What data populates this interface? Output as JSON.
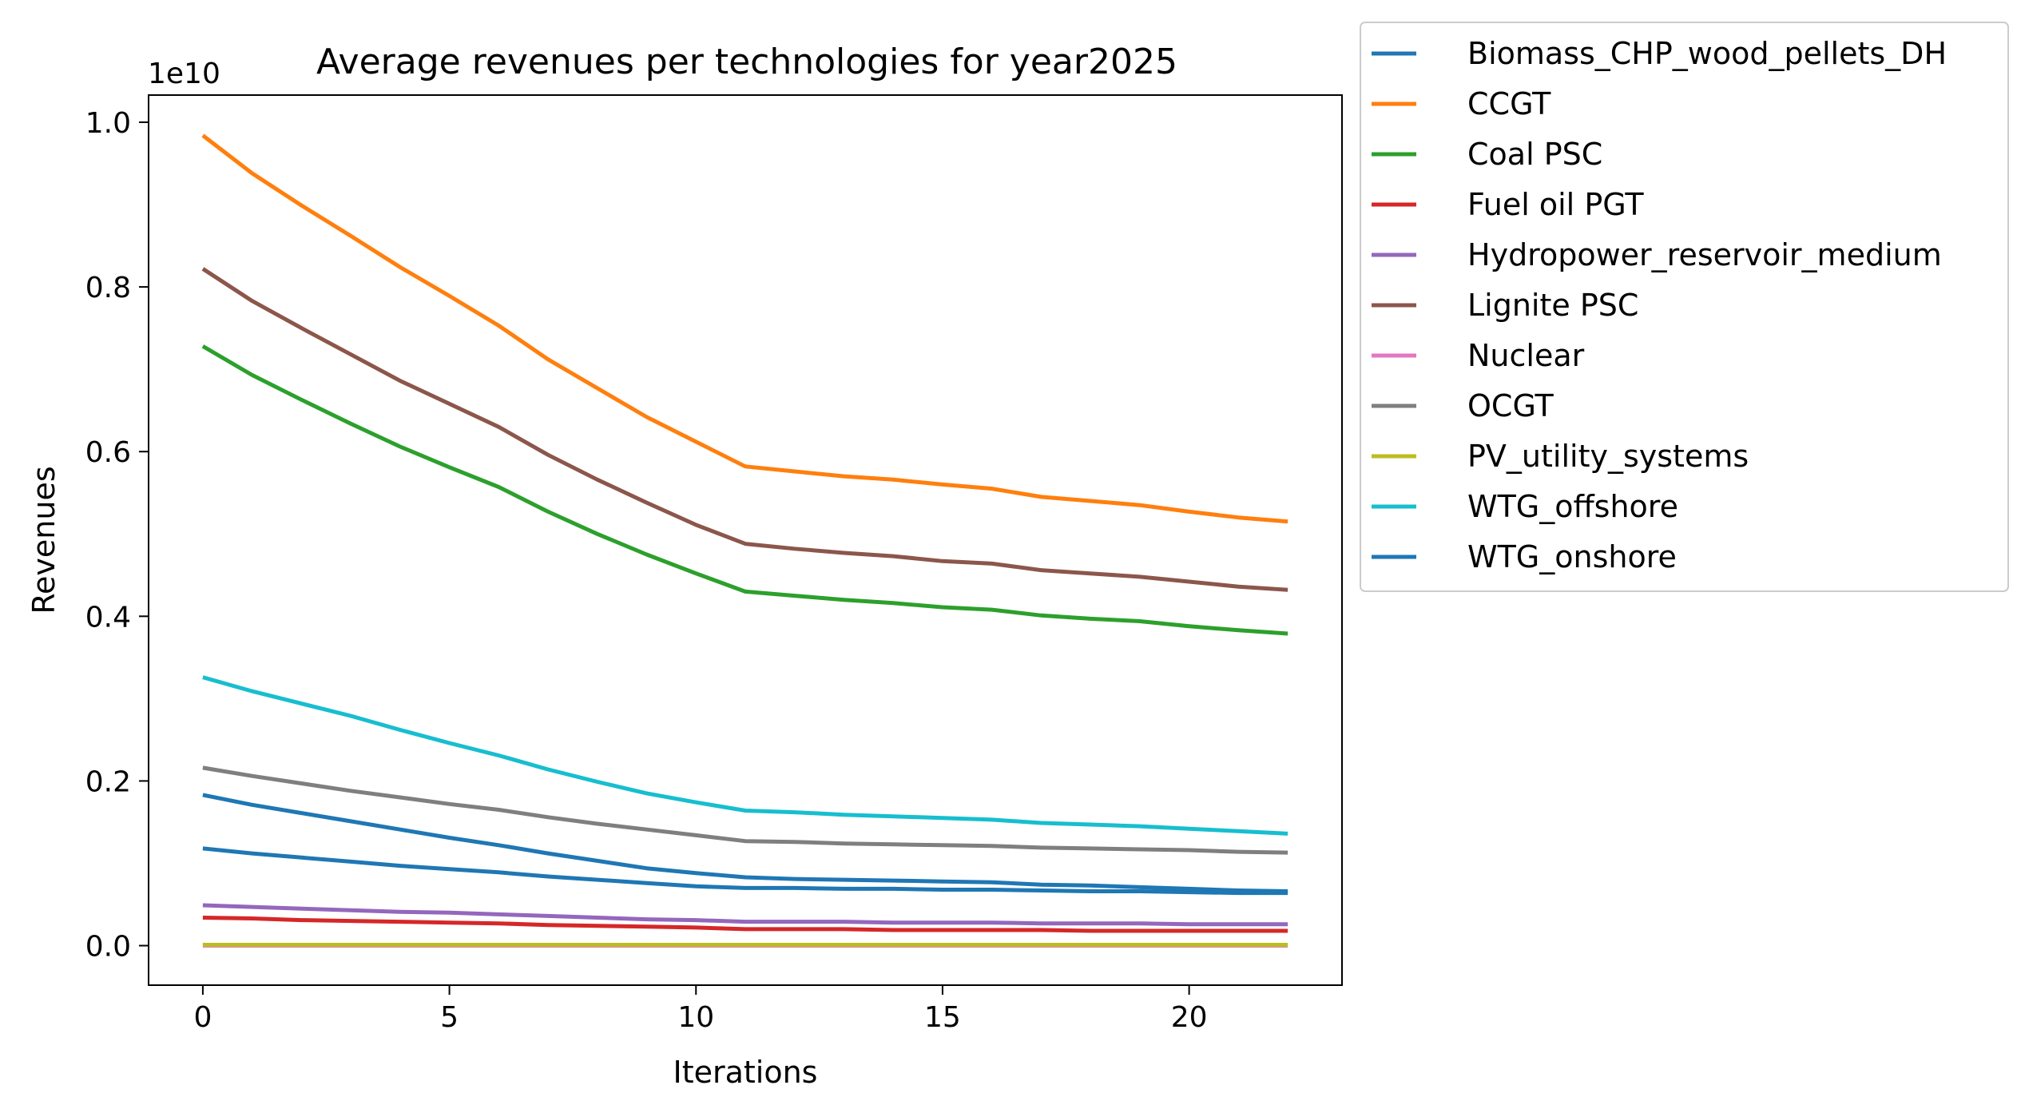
{
  "chart_data": {
    "type": "line",
    "title": "Average revenues per technologies for year2025",
    "xlabel": "Iterations",
    "ylabel": "Revenues",
    "y_offset_label": "1e10",
    "xlim": [
      -1.1,
      23.1
    ],
    "ylim": [
      -0.048,
      1.033
    ],
    "x_ticks": [
      0,
      5,
      10,
      15,
      20
    ],
    "y_ticks": [
      0.0,
      0.2,
      0.4,
      0.6,
      0.8,
      1.0
    ],
    "x_tick_labels": [
      "0",
      "5",
      "10",
      "15",
      "20"
    ],
    "y_tick_labels": [
      "0.0",
      "0.2",
      "0.4",
      "0.6",
      "0.8",
      "1.0"
    ],
    "grid": false,
    "legend_position": "outside-right-top",
    "x": [
      0,
      1,
      2,
      3,
      4,
      5,
      6,
      7,
      8,
      9,
      10,
      11,
      12,
      13,
      14,
      15,
      16,
      17,
      18,
      19,
      20,
      21,
      22
    ],
    "series": [
      {
        "name": "Biomass_CHP_wood_pellets_DH",
        "color": "#1f77b4",
        "values": [
          0.118,
          0.112,
          0.107,
          0.102,
          0.097,
          0.093,
          0.089,
          0.084,
          0.08,
          0.076,
          0.072,
          0.07,
          0.07,
          0.069,
          0.069,
          0.068,
          0.068,
          0.067,
          0.066,
          0.066,
          0.065,
          0.064,
          0.064
        ]
      },
      {
        "name": "CCGT",
        "color": "#ff7f0e",
        "values": [
          0.984,
          0.938,
          0.899,
          0.862,
          0.824,
          0.789,
          0.753,
          0.712,
          0.677,
          0.642,
          0.612,
          0.582,
          0.576,
          0.57,
          0.566,
          0.56,
          0.555,
          0.545,
          0.54,
          0.535,
          0.527,
          0.52,
          0.515
        ]
      },
      {
        "name": "Coal PSC",
        "color": "#2ca02c",
        "values": [
          0.728,
          0.693,
          0.663,
          0.634,
          0.606,
          0.581,
          0.557,
          0.527,
          0.5,
          0.475,
          0.452,
          0.43,
          0.425,
          0.42,
          0.416,
          0.411,
          0.408,
          0.401,
          0.397,
          0.394,
          0.388,
          0.383,
          0.379
        ]
      },
      {
        "name": "Fuel oil PGT",
        "color": "#d62728",
        "values": [
          0.034,
          0.033,
          0.031,
          0.03,
          0.029,
          0.028,
          0.027,
          0.025,
          0.024,
          0.023,
          0.022,
          0.02,
          0.02,
          0.02,
          0.019,
          0.019,
          0.019,
          0.019,
          0.018,
          0.018,
          0.018,
          0.018,
          0.018
        ]
      },
      {
        "name": "Hydropower_reservoir_medium",
        "color": "#9467bd",
        "values": [
          0.049,
          0.047,
          0.045,
          0.043,
          0.041,
          0.04,
          0.038,
          0.036,
          0.034,
          0.032,
          0.031,
          0.029,
          0.029,
          0.029,
          0.028,
          0.028,
          0.028,
          0.027,
          0.027,
          0.027,
          0.026,
          0.026,
          0.026
        ]
      },
      {
        "name": "Lignite PSC",
        "color": "#8c564b",
        "values": [
          0.822,
          0.783,
          0.75,
          0.718,
          0.686,
          0.658,
          0.63,
          0.596,
          0.566,
          0.538,
          0.511,
          0.488,
          0.482,
          0.477,
          0.473,
          0.467,
          0.464,
          0.456,
          0.452,
          0.448,
          0.442,
          0.436,
          0.432
        ]
      },
      {
        "name": "Nuclear",
        "color": "#e377c2",
        "values": [
          0.0,
          0.0,
          0.0,
          0.0,
          0.0,
          0.0,
          0.0,
          0.0,
          0.0,
          0.0,
          0.0,
          0.0,
          0.0,
          0.0,
          0.0,
          0.0,
          0.0,
          0.0,
          0.0,
          0.0,
          0.0,
          0.0,
          0.0
        ]
      },
      {
        "name": "OCGT",
        "color": "#7f7f7f",
        "values": [
          0.216,
          0.206,
          0.197,
          0.188,
          0.18,
          0.172,
          0.165,
          0.156,
          0.148,
          0.141,
          0.134,
          0.127,
          0.126,
          0.124,
          0.123,
          0.122,
          0.121,
          0.119,
          0.118,
          0.117,
          0.116,
          0.114,
          0.113
        ]
      },
      {
        "name": "PV_utility_systems",
        "color": "#bcbd22",
        "values": [
          0.001,
          0.001,
          0.001,
          0.001,
          0.001,
          0.001,
          0.001,
          0.001,
          0.001,
          0.001,
          0.001,
          0.001,
          0.001,
          0.001,
          0.001,
          0.001,
          0.001,
          0.001,
          0.001,
          0.001,
          0.001,
          0.001,
          0.001
        ]
      },
      {
        "name": "WTG_offshore",
        "color": "#17becf",
        "values": [
          0.326,
          0.309,
          0.294,
          0.279,
          0.262,
          0.246,
          0.231,
          0.214,
          0.199,
          0.185,
          0.174,
          0.164,
          0.162,
          0.159,
          0.157,
          0.155,
          0.153,
          0.149,
          0.147,
          0.145,
          0.142,
          0.139,
          0.136
        ]
      },
      {
        "name": "WTG_onshore",
        "color": "#1f77b4",
        "values": [
          0.183,
          0.171,
          0.161,
          0.151,
          0.141,
          0.131,
          0.122,
          0.112,
          0.103,
          0.094,
          0.088,
          0.083,
          0.081,
          0.08,
          0.079,
          0.078,
          0.077,
          0.074,
          0.073,
          0.071,
          0.069,
          0.067,
          0.066
        ]
      }
    ]
  }
}
